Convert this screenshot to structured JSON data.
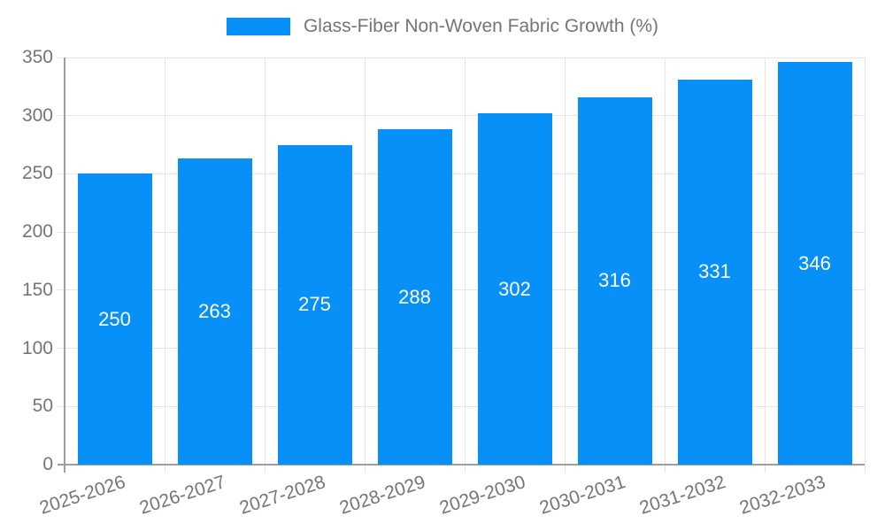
{
  "chart_data": {
    "type": "bar",
    "title": "Glass-Fiber Non-Woven Fabric Growth (%)",
    "categories": [
      "2025-2026",
      "2026-2027",
      "2027-2028",
      "2028-2029",
      "2029-2030",
      "2030-2031",
      "2031-2032",
      "2032-2033"
    ],
    "values": [
      250,
      263,
      275,
      288,
      302,
      316,
      331,
      346
    ],
    "ylim": [
      0,
      350
    ],
    "yticks": [
      0,
      50,
      100,
      150,
      200,
      250,
      300,
      350
    ],
    "grid": true,
    "legend_position": "top-center",
    "bar_color": "#0790F8",
    "value_label_color": "#FFFFFF"
  },
  "style": {
    "background_color": "#FFFFFF",
    "grid_color": "#E5E5E5",
    "axis_color": "#9E9E9E",
    "tick_text_color": "#757575"
  }
}
